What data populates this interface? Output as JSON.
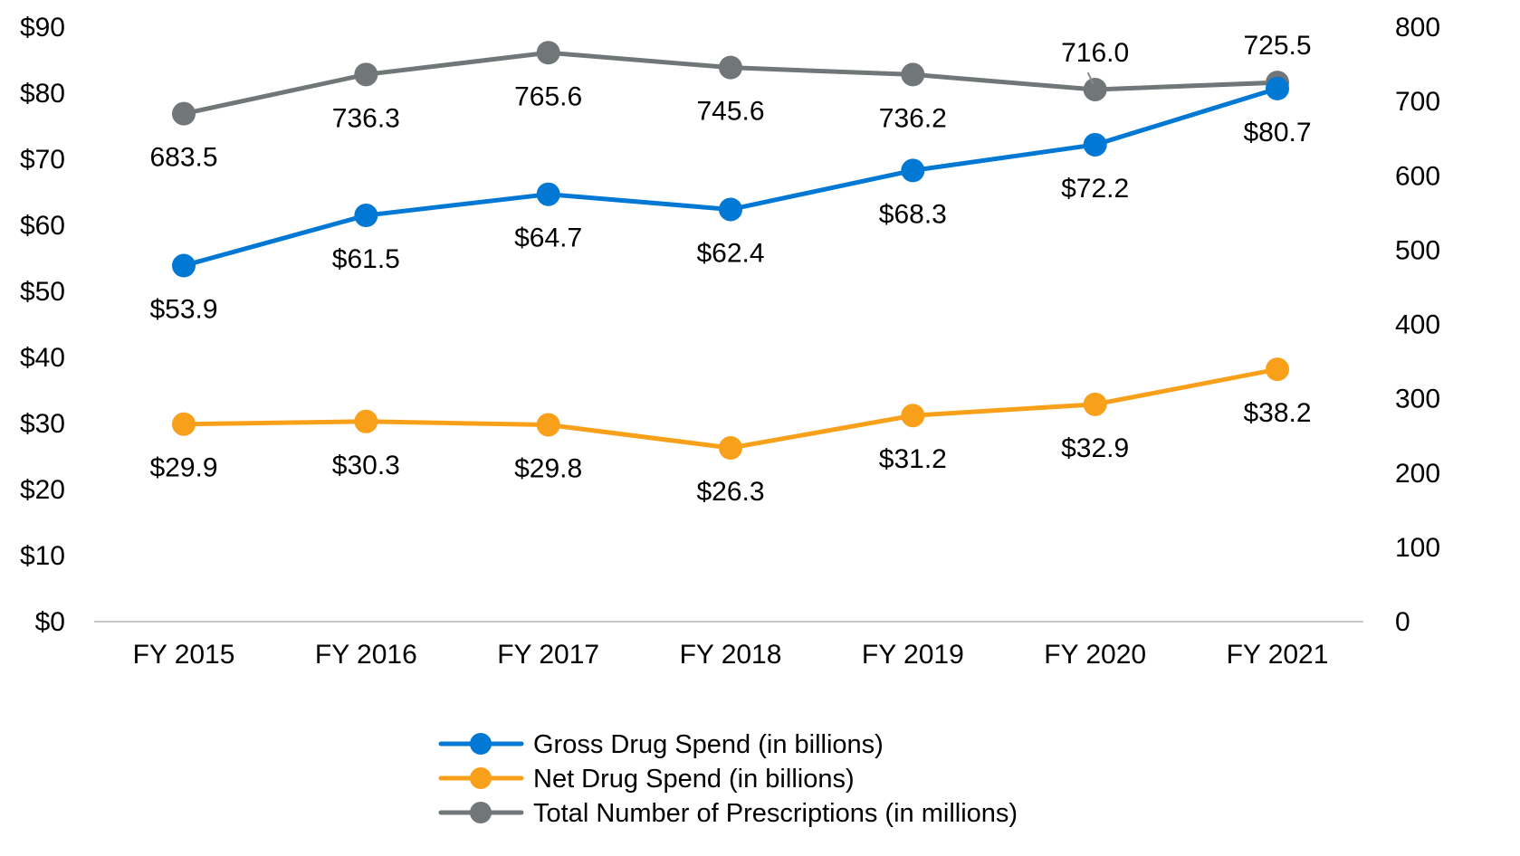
{
  "chart_data": {
    "type": "line",
    "categories": [
      "FY 2015",
      "FY 2016",
      "FY 2017",
      "FY 2018",
      "FY 2019",
      "FY 2020",
      "FY 2021"
    ],
    "series": [
      {
        "name": "Gross Drug Spend (in billions)",
        "axis": "left",
        "color": "#0078d4",
        "values": [
          53.9,
          61.5,
          64.7,
          62.4,
          68.3,
          72.2,
          80.7
        ],
        "labels": [
          "$53.9",
          "$61.5",
          "$64.7",
          "$62.4",
          "$68.3",
          "$72.2",
          "$80.7"
        ]
      },
      {
        "name": "Net Drug Spend (in billions)",
        "axis": "left",
        "color": "#f9a01b",
        "values": [
          29.9,
          30.3,
          29.8,
          26.3,
          31.2,
          32.9,
          38.2
        ],
        "labels": [
          "$29.9",
          "$30.3",
          "$29.8",
          "$26.3",
          "$31.2",
          "$32.9",
          "$38.2"
        ]
      },
      {
        "name": "Total Number of Prescriptions (in millions)",
        "axis": "right",
        "color": "#717678",
        "values": [
          683.5,
          736.3,
          765.6,
          745.6,
          736.2,
          716.0,
          725.5
        ],
        "labels": [
          "683.5",
          "736.3",
          "765.6",
          "745.6",
          "736.2",
          "716.0",
          "725.5"
        ]
      }
    ],
    "y_left": {
      "range": [
        0,
        90
      ],
      "ticks": [
        0,
        10,
        20,
        30,
        40,
        50,
        60,
        70,
        80,
        90
      ],
      "tick_labels": [
        "$0",
        "$10",
        "$20",
        "$30",
        "$40",
        "$50",
        "$60",
        "$70",
        "$80",
        "$90"
      ]
    },
    "y_right": {
      "range": [
        0,
        800
      ],
      "ticks": [
        0,
        100,
        200,
        300,
        400,
        500,
        600,
        700,
        800
      ],
      "tick_labels": [
        "0",
        "100",
        "200",
        "300",
        "400",
        "500",
        "600",
        "700",
        "800"
      ]
    },
    "title": "",
    "xlabel": "",
    "ylabel": "",
    "grid": false,
    "legend_position": "bottom-center"
  }
}
